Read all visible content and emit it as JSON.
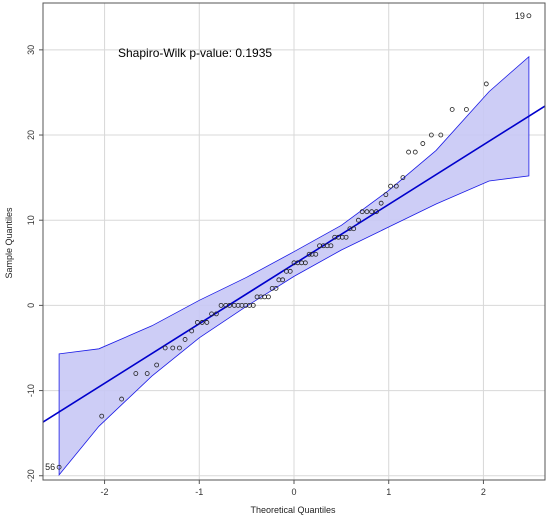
{
  "chart_data": {
    "type": "scatter",
    "title": "",
    "xlabel": "Theoretical Quantiles",
    "ylabel": "Sample Quantiles",
    "xlim": [
      -2.65,
      2.65
    ],
    "ylim": [
      -20.5,
      35.5
    ],
    "x_ticks": [
      -2,
      -1,
      0,
      1,
      2
    ],
    "x_tick_labels": [
      "-2",
      "-1",
      "0",
      "1",
      "2"
    ],
    "y_ticks": [
      -20,
      -10,
      0,
      10,
      20,
      30
    ],
    "y_tick_labels": [
      "-20",
      "-10",
      "0",
      "10",
      "20",
      "30"
    ],
    "grid": true,
    "annotation": "Shapiro-Wilk p-value:  0.1935",
    "reference_line": {
      "slope": 7.0,
      "intercept": 4.85
    },
    "confidence_band": {
      "x": [
        -2.48,
        -2.06,
        -1.5,
        -1.0,
        -0.5,
        0.0,
        0.5,
        1.0,
        1.5,
        2.06,
        2.48
      ],
      "upper": [
        -5.7,
        -5.1,
        -2.4,
        0.6,
        3.3,
        6.3,
        9.4,
        13.5,
        18.2,
        25.1,
        29.2
      ],
      "lower": [
        -19.9,
        -14.2,
        -8.3,
        -3.8,
        -0.1,
        3.4,
        6.5,
        9.2,
        11.9,
        14.6,
        15.2
      ]
    },
    "point_labels": [
      {
        "label": "19",
        "x": 2.48,
        "y": 34
      },
      {
        "label": "56",
        "x": -2.48,
        "y": -19
      }
    ],
    "points": [
      {
        "x": -2.48,
        "y": -19
      },
      {
        "x": -2.03,
        "y": -13
      },
      {
        "x": -1.82,
        "y": -11
      },
      {
        "x": -1.67,
        "y": -8
      },
      {
        "x": -1.55,
        "y": -8
      },
      {
        "x": -1.45,
        "y": -7
      },
      {
        "x": -1.36,
        "y": -5
      },
      {
        "x": -1.28,
        "y": -5
      },
      {
        "x": -1.21,
        "y": -5
      },
      {
        "x": -1.15,
        "y": -4
      },
      {
        "x": -1.08,
        "y": -3
      },
      {
        "x": -1.02,
        "y": -2
      },
      {
        "x": -0.97,
        "y": -2
      },
      {
        "x": -0.92,
        "y": -2
      },
      {
        "x": -0.87,
        "y": -1
      },
      {
        "x": -0.82,
        "y": -1
      },
      {
        "x": -0.77,
        "y": 0
      },
      {
        "x": -0.72,
        "y": 0
      },
      {
        "x": -0.68,
        "y": 0
      },
      {
        "x": -0.63,
        "y": 0
      },
      {
        "x": -0.59,
        "y": 0
      },
      {
        "x": -0.55,
        "y": 0
      },
      {
        "x": -0.51,
        "y": 0
      },
      {
        "x": -0.47,
        "y": 0
      },
      {
        "x": -0.43,
        "y": 0
      },
      {
        "x": -0.39,
        "y": 1
      },
      {
        "x": -0.35,
        "y": 1
      },
      {
        "x": -0.31,
        "y": 1
      },
      {
        "x": -0.27,
        "y": 1
      },
      {
        "x": -0.23,
        "y": 2
      },
      {
        "x": -0.19,
        "y": 2
      },
      {
        "x": -0.16,
        "y": 3
      },
      {
        "x": -0.12,
        "y": 3
      },
      {
        "x": -0.08,
        "y": 4
      },
      {
        "x": -0.04,
        "y": 4
      },
      {
        "x": 0.0,
        "y": 5
      },
      {
        "x": 0.04,
        "y": 5
      },
      {
        "x": 0.08,
        "y": 5
      },
      {
        "x": 0.12,
        "y": 5
      },
      {
        "x": 0.16,
        "y": 6
      },
      {
        "x": 0.19,
        "y": 6
      },
      {
        "x": 0.23,
        "y": 6
      },
      {
        "x": 0.27,
        "y": 7
      },
      {
        "x": 0.31,
        "y": 7
      },
      {
        "x": 0.35,
        "y": 7
      },
      {
        "x": 0.39,
        "y": 7
      },
      {
        "x": 0.43,
        "y": 8
      },
      {
        "x": 0.47,
        "y": 8
      },
      {
        "x": 0.51,
        "y": 8
      },
      {
        "x": 0.55,
        "y": 8
      },
      {
        "x": 0.59,
        "y": 9
      },
      {
        "x": 0.63,
        "y": 9
      },
      {
        "x": 0.68,
        "y": 10
      },
      {
        "x": 0.72,
        "y": 11
      },
      {
        "x": 0.77,
        "y": 11
      },
      {
        "x": 0.82,
        "y": 11
      },
      {
        "x": 0.87,
        "y": 11
      },
      {
        "x": 0.92,
        "y": 12
      },
      {
        "x": 0.97,
        "y": 13
      },
      {
        "x": 1.02,
        "y": 14
      },
      {
        "x": 1.08,
        "y": 14
      },
      {
        "x": 1.15,
        "y": 15
      },
      {
        "x": 1.21,
        "y": 18
      },
      {
        "x": 1.28,
        "y": 18
      },
      {
        "x": 1.36,
        "y": 19
      },
      {
        "x": 1.45,
        "y": 20
      },
      {
        "x": 1.55,
        "y": 20
      },
      {
        "x": 1.67,
        "y": 23
      },
      {
        "x": 1.82,
        "y": 23
      },
      {
        "x": 2.03,
        "y": 26
      },
      {
        "x": 2.48,
        "y": 34
      }
    ],
    "colors": {
      "line": "#0000cc",
      "band_fill": "#c8c8f5",
      "band_edge": "#1a1ae6",
      "points": "#222222",
      "grid": "#d8d8d8",
      "frame": "#555555"
    }
  }
}
